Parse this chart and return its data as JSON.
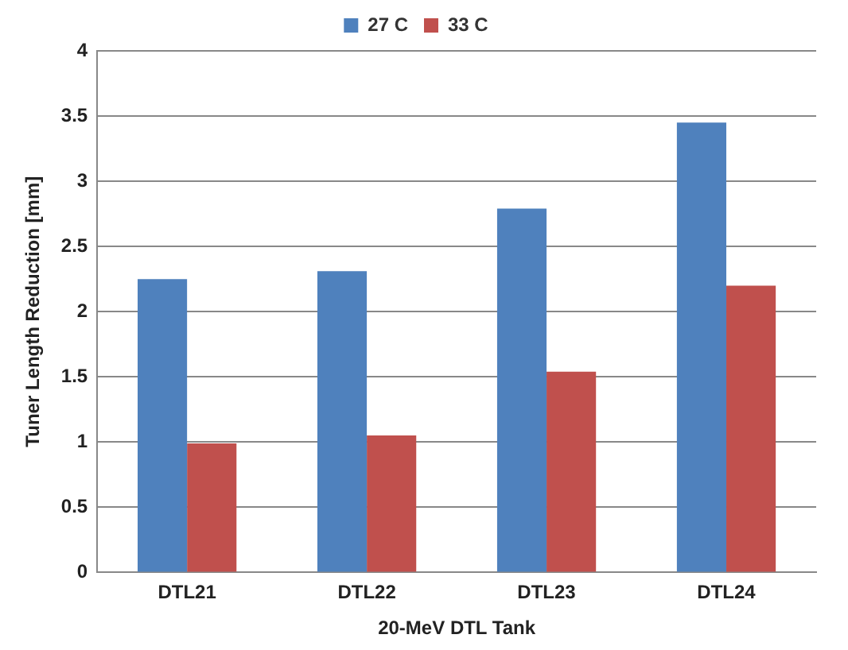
{
  "chart_data": {
    "type": "bar",
    "xlabel": "20-MeV DTL Tank",
    "ylabel": "Tuner Length Reduction [mm]",
    "categories": [
      "DTL21",
      "DTL22",
      "DTL23",
      "DTL24"
    ],
    "series": [
      {
        "name": "27 C",
        "color": "#4f81bd",
        "values": [
          2.25,
          2.31,
          2.79,
          3.45
        ]
      },
      {
        "name": "33 C",
        "color": "#c0504d",
        "values": [
          0.99,
          1.05,
          1.54,
          2.2
        ]
      }
    ],
    "ylim": [
      0,
      4
    ],
    "yticks": [
      0,
      0.5,
      1,
      1.5,
      2,
      2.5,
      3,
      3.5,
      4
    ],
    "grid": "y",
    "legend": "top"
  }
}
